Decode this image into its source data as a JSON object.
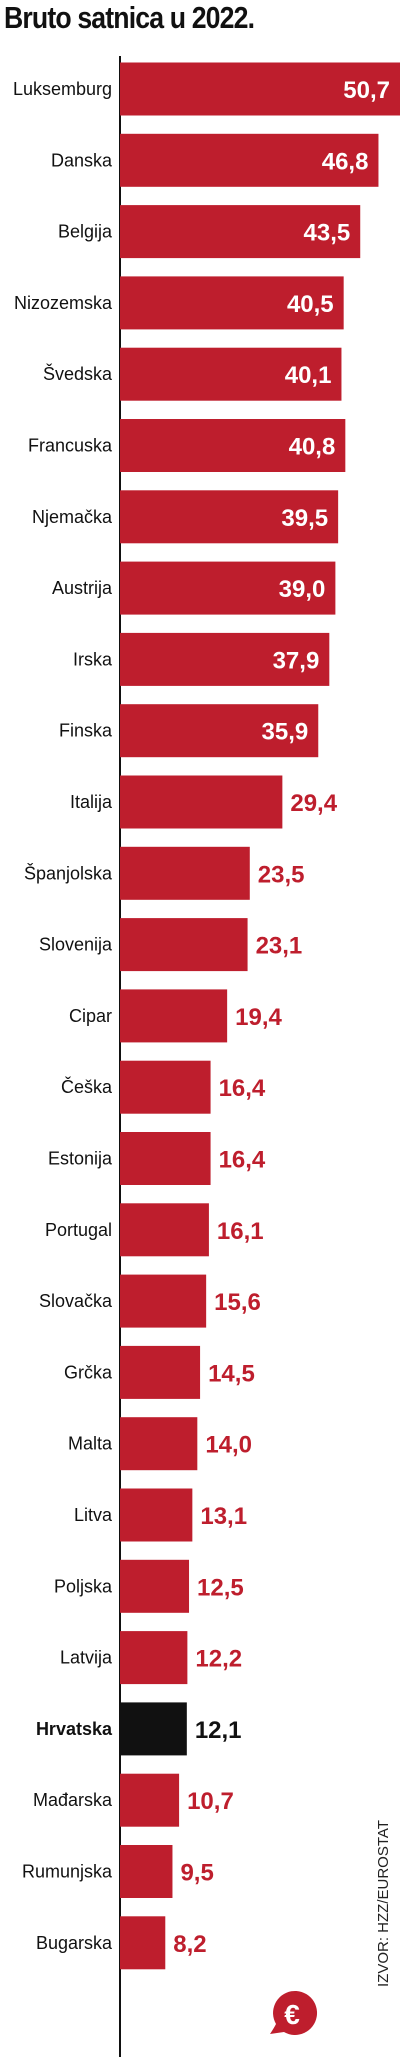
{
  "title": "Bruto satnica u 2022.",
  "source": "IZVOR: HZZ/EUROSTAT",
  "colors": {
    "bar": "#be1e2d",
    "highlight": "#111111",
    "label_inside": "#ffffff",
    "axis": "#111111"
  },
  "badge": {
    "icon": "euro-icon",
    "symbol": "€"
  },
  "chart_data": {
    "type": "bar",
    "orientation": "horizontal",
    "title": "Bruto satnica u 2022.",
    "xlim": [
      0,
      50.7
    ],
    "grid": false,
    "categories": [
      "Luksemburg",
      "Danska",
      "Belgija",
      "Nizozemska",
      "Švedska",
      "Francuska",
      "Njemačka",
      "Austrija",
      "Irska",
      "Finska",
      "Italija",
      "Španjolska",
      "Slovenija",
      "Cipar",
      "Češka",
      "Estonija",
      "Portugal",
      "Slovačka",
      "Grčka",
      "Malta",
      "Litva",
      "Poljska",
      "Latvija",
      "Hrvatska",
      "Mađarska",
      "Rumunjska",
      "Bugarska"
    ],
    "values": [
      50.7,
      46.8,
      43.5,
      40.5,
      40.1,
      40.8,
      39.5,
      39.0,
      37.9,
      35.9,
      29.4,
      23.5,
      23.1,
      19.4,
      16.4,
      16.4,
      16.1,
      15.6,
      14.5,
      14.0,
      13.1,
      12.5,
      12.2,
      12.1,
      10.7,
      9.5,
      8.2
    ],
    "value_labels": [
      "50,7",
      "46,8",
      "43,5",
      "40,5",
      "40,1",
      "40,8",
      "39,5",
      "39,0",
      "37,9",
      "35,9",
      "29,4",
      "23,5",
      "23,1",
      "19,4",
      "16,4",
      "16,4",
      "16,1",
      "15,6",
      "14,5",
      "14,0",
      "13,1",
      "12,5",
      "12,2",
      "12,1",
      "10,7",
      "9,5",
      "8,2"
    ],
    "highlight": "Hrvatska"
  }
}
